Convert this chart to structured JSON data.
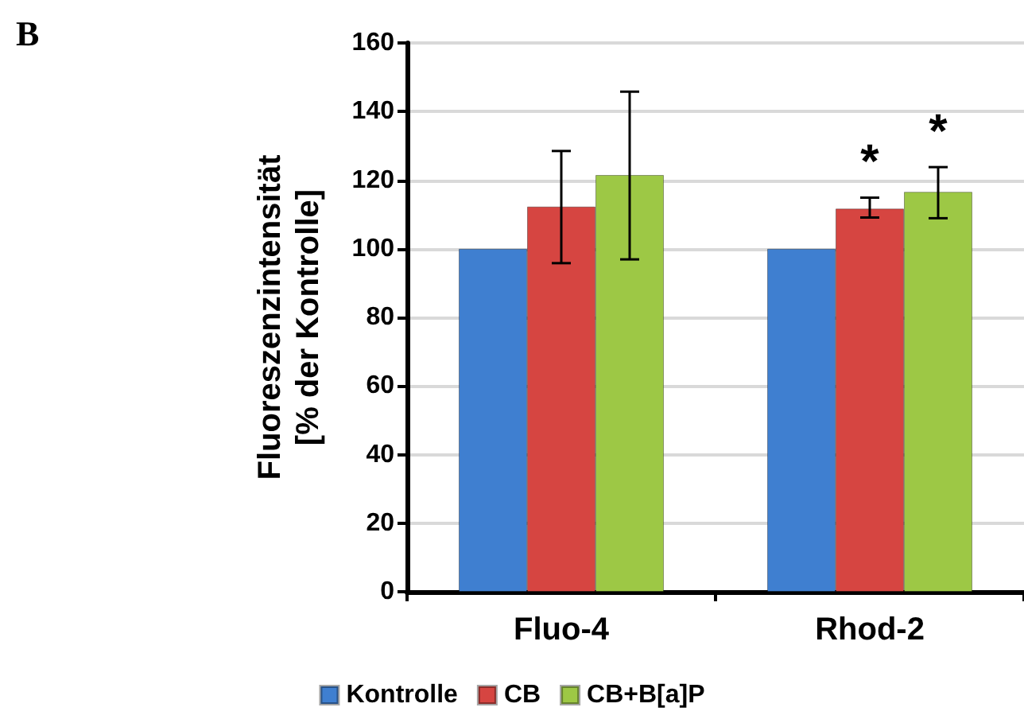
{
  "chart_data": {
    "type": "bar",
    "ylabel": "Fluoreszenzintensität\n[% der Kontrolle]",
    "categories": [
      "Fluo-4",
      "Rhod-2"
    ],
    "series": [
      {
        "name": "Kontrolle",
        "color": "#3f7fd0",
        "values": [
          100,
          100
        ]
      },
      {
        "name": "CB",
        "color": "#d64541",
        "values": [
          112.3,
          111.7
        ],
        "errors": [
          [
            95.8,
            128.5
          ],
          [
            109.1,
            114.9
          ]
        ]
      },
      {
        "name": "CB+B[a]P",
        "color": "#9dc845",
        "values": [
          121.5,
          116.6
        ],
        "errors": [
          [
            96.9,
            145.8
          ],
          [
            108.9,
            123.8
          ]
        ]
      }
    ],
    "annotations": [
      "B",
      "*",
      "*"
    ],
    "ylim": [
      0,
      160
    ],
    "yticks": [
      0,
      20,
      40,
      60,
      80,
      100,
      120,
      140,
      160
    ],
    "grid": "y",
    "legend": "bottom"
  }
}
